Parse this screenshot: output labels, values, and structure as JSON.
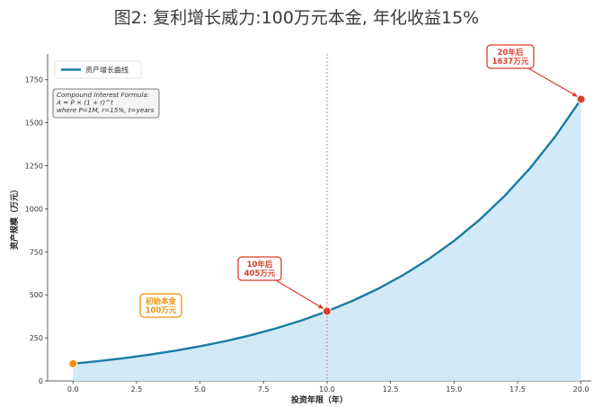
{
  "chart_data": {
    "type": "area",
    "title": "图2: 复利增长威力:100万元本金, 年化收益15%",
    "xlabel": "投资年限（年）",
    "ylabel": "资产规模（万元）",
    "xlim": [
      -1,
      20.4
    ],
    "ylim": [
      0,
      1900
    ],
    "x_ticks": [
      0.0,
      2.5,
      5.0,
      7.5,
      10.0,
      12.5,
      15.0,
      17.5,
      20.0
    ],
    "x_tick_labels": [
      "0.0",
      "2.5",
      "5.0",
      "7.5",
      "10.0",
      "12.5",
      "15.0",
      "17.5",
      "20.0"
    ],
    "y_ticks": [
      0,
      250,
      500,
      750,
      1000,
      1250,
      1500,
      1750
    ],
    "y_tick_labels": [
      "0",
      "250",
      "500",
      "750",
      "1000",
      "1250",
      "1500",
      "1750"
    ],
    "grid": false,
    "legend": {
      "position": "top-left",
      "entries": [
        "资产增长曲线"
      ]
    },
    "series": [
      {
        "name": "资产增长曲线",
        "color": "#1a7ba3",
        "fill": "#cde8f6",
        "x": [
          0,
          1,
          2,
          3,
          4,
          5,
          6,
          7,
          8,
          9,
          10,
          11,
          12,
          13,
          14,
          15,
          16,
          17,
          18,
          19,
          20
        ],
        "values": [
          100,
          115,
          132.3,
          152.1,
          174.9,
          201.1,
          231.3,
          266,
          305.9,
          351.8,
          404.6,
          465.2,
          535,
          615.3,
          707.6,
          813.7,
          935.8,
          1076.1,
          1237.5,
          1423.2,
          1636.7
        ]
      }
    ],
    "vline": {
      "x": 10,
      "color": "#e06050"
    },
    "formula_box": {
      "lines": [
        "Compound Interest Formula:",
        "A = P × (1 + r)^t",
        "where P=1M, r=15%, t=years"
      ]
    },
    "annotations": [
      {
        "name": "initial",
        "point": [
          0,
          100
        ],
        "color": "#f0900a",
        "lines": [
          "初始本金",
          "100万元"
        ]
      },
      {
        "name": "year10",
        "point": [
          10,
          404.6
        ],
        "color": "#d93b2c",
        "lines": [
          "10年后",
          "405万元"
        ]
      },
      {
        "name": "year20",
        "point": [
          20,
          1636.7
        ],
        "color": "#d93b2c",
        "lines": [
          "20年后",
          "1637万元"
        ]
      }
    ]
  }
}
